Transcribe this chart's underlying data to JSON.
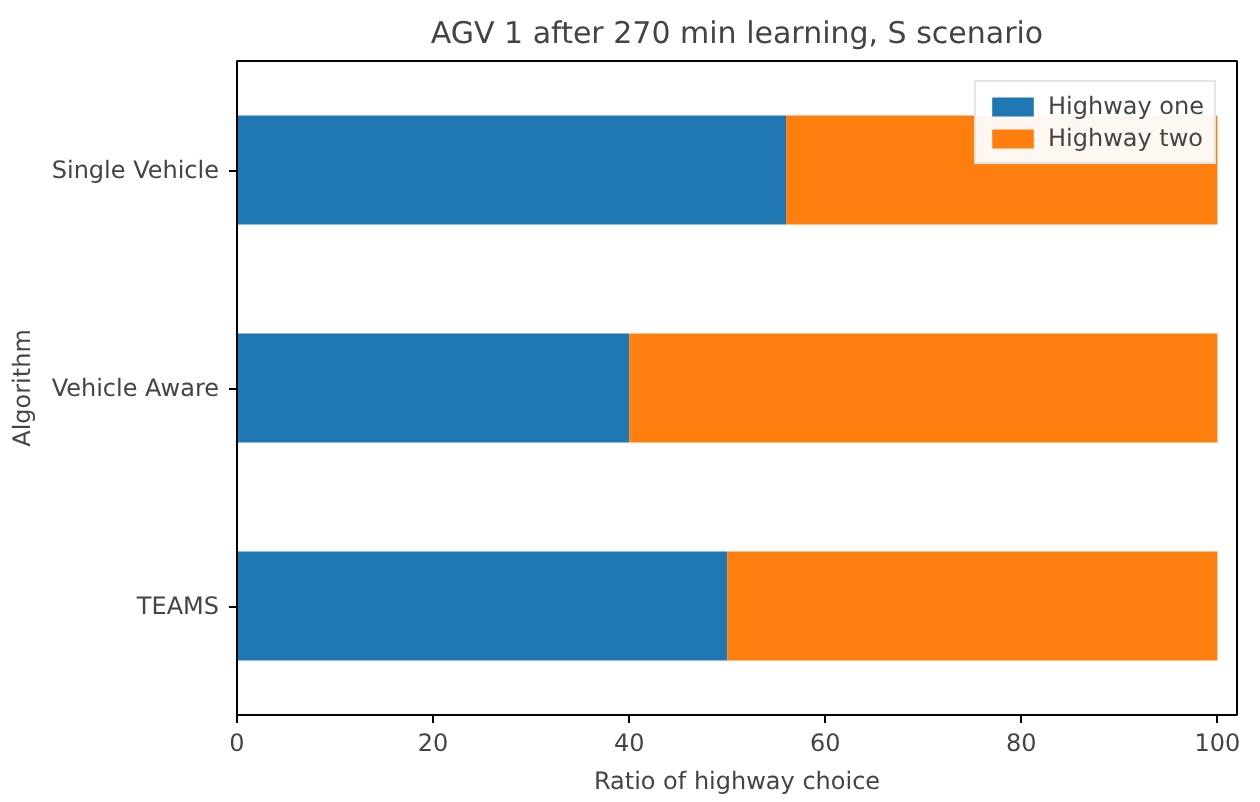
{
  "chart_data": {
    "type": "bar",
    "orientation": "horizontal",
    "stacked": true,
    "title": "AGV 1 after 270 min learning, S scenario",
    "xlabel": "Ratio of highway choice",
    "ylabel": "Algorithm",
    "categories": [
      "Single Vehicle",
      "Vehicle Aware",
      "TEAMS"
    ],
    "series": [
      {
        "name": "Highway one",
        "color": "#1f77b4",
        "values": [
          56,
          40,
          50
        ]
      },
      {
        "name": "Highway two",
        "color": "#ff7f0e",
        "values": [
          44,
          60,
          50
        ]
      }
    ],
    "xlim": [
      0,
      102
    ],
    "xticks": [
      0,
      20,
      40,
      60,
      80,
      100
    ],
    "grid": false,
    "legend": "top right"
  }
}
